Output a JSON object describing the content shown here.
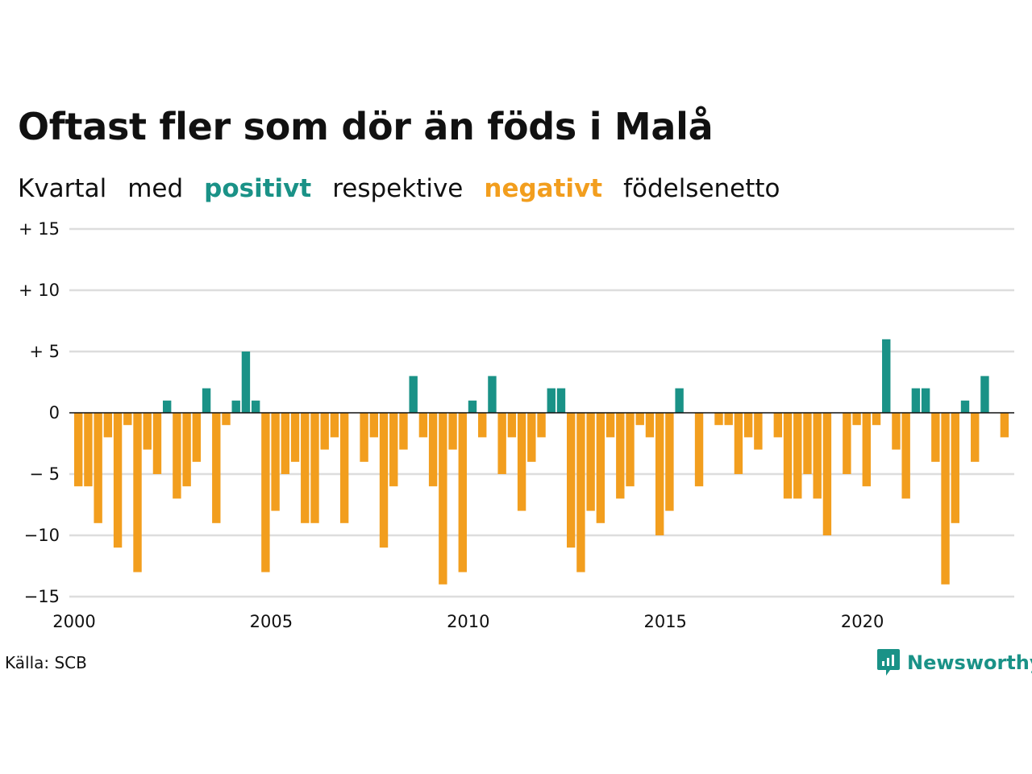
{
  "title": "Oftast fler som dör än föds i Malå",
  "subtitle": {
    "parts": [
      "Kvartal",
      "med",
      "positivt",
      "respektive",
      "negativt",
      "födelsenetto"
    ]
  },
  "source": "Källa: SCB",
  "brand": {
    "name": "Newsworthy",
    "icon": "newsworthy-logo-icon"
  },
  "colors": {
    "positive": "#1a9287",
    "negative": "#f29e1e",
    "grid": "#dddddd",
    "zero": "#111111"
  },
  "chart_data": {
    "type": "bar",
    "title": "Oftast fler som dör än föds i Malå",
    "xlabel": "",
    "ylabel": "",
    "ylim": [
      -15,
      15
    ],
    "yticks": [
      15,
      10,
      5,
      0,
      -5,
      -10,
      -15
    ],
    "ytick_labels": [
      "+ 15",
      "+ 10",
      "+  5",
      "0",
      "− 5",
      "−10",
      "−15"
    ],
    "xticks": [
      2000,
      2005,
      2010,
      2015,
      2020
    ],
    "xtick_labels": [
      "2000",
      "2005",
      "2010",
      "2015",
      "2020"
    ],
    "grid": true,
    "x_start": 2000,
    "periods_per_year": 4,
    "values": [
      -6,
      -6,
      -9,
      -2,
      -11,
      -1,
      -13,
      -3,
      -5,
      1,
      -7,
      -6,
      -4,
      2,
      -9,
      -1,
      1,
      5,
      1,
      -13,
      -8,
      -5,
      -4,
      -9,
      -9,
      -3,
      -2,
      -9,
      0,
      -4,
      -2,
      -11,
      -6,
      -3,
      3,
      -2,
      -6,
      -14,
      -3,
      -13,
      1,
      -2,
      3,
      -5,
      -2,
      -8,
      -4,
      -2,
      2,
      2,
      -11,
      -13,
      -8,
      -9,
      -2,
      -7,
      -6,
      -1,
      -2,
      -10,
      -8,
      2,
      0,
      -6,
      0,
      -1,
      -1,
      -5,
      -2,
      -3,
      0,
      -2,
      -7,
      -7,
      -5,
      -7,
      -10,
      0,
      -5,
      -1,
      -6,
      -1,
      6,
      -3,
      -7,
      2,
      2,
      -4,
      -14,
      -9,
      1,
      -4,
      3,
      0,
      -2
    ]
  }
}
